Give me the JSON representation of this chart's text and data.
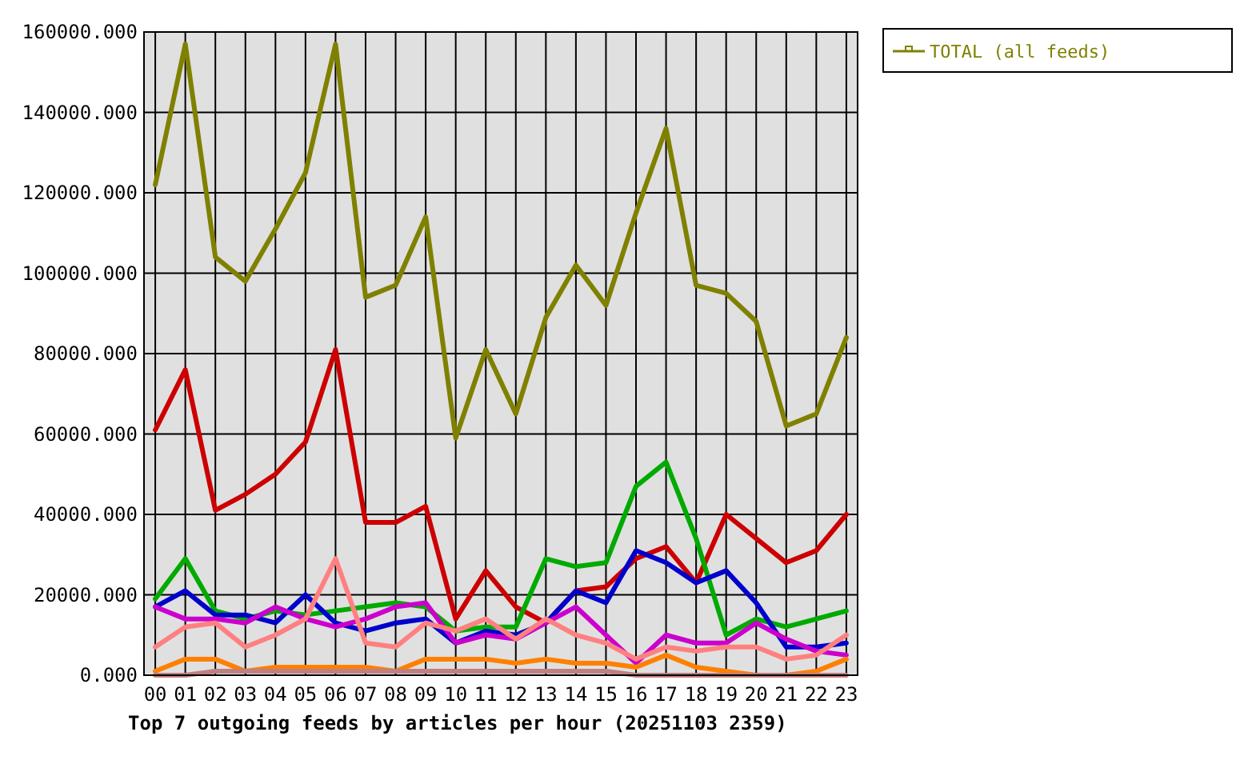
{
  "chart_data": {
    "type": "line",
    "title": "Top 7 outgoing feeds by articles per hour (20251103 2359)",
    "categories": [
      "00",
      "01",
      "02",
      "03",
      "04",
      "05",
      "06",
      "07",
      "08",
      "09",
      "10",
      "11",
      "12",
      "13",
      "14",
      "15",
      "16",
      "17",
      "18",
      "19",
      "20",
      "21",
      "22",
      "23"
    ],
    "series": [
      {
        "color": "#cc0000",
        "values": [
          61000,
          76000,
          41000,
          45000,
          50000,
          58000,
          81000,
          38000,
          38000,
          42000,
          14000,
          26000,
          17000,
          13000,
          21000,
          22000,
          29000,
          32000,
          23000,
          40000,
          34000,
          28000,
          31000,
          40000
        ]
      },
      {
        "color": "#00aa00",
        "values": [
          19000,
          29000,
          16000,
          14000,
          16000,
          15000,
          16000,
          17000,
          18000,
          17000,
          11000,
          12000,
          12000,
          29000,
          27000,
          28000,
          47000,
          53000,
          34000,
          10000,
          14000,
          12000,
          14000,
          16000
        ]
      },
      {
        "color": "#0000cc",
        "values": [
          17000,
          21000,
          15000,
          15000,
          13000,
          20000,
          13000,
          11000,
          13000,
          14000,
          8000,
          11000,
          10000,
          13000,
          21000,
          18000,
          31000,
          28000,
          23000,
          26000,
          18000,
          7000,
          7000,
          8000
        ]
      },
      {
        "color": "#cc00cc",
        "values": [
          17000,
          14000,
          14000,
          13000,
          17000,
          14000,
          12000,
          14000,
          17000,
          18000,
          8000,
          10000,
          9000,
          13000,
          17000,
          10000,
          3000,
          10000,
          8000,
          8000,
          13000,
          9000,
          6000,
          5000
        ]
      },
      {
        "color": "#ff8080",
        "values": [
          7000,
          12000,
          13000,
          7000,
          10000,
          14000,
          29000,
          8000,
          7000,
          13000,
          11000,
          14000,
          9000,
          14000,
          10000,
          8000,
          4000,
          7000,
          6000,
          7000,
          7000,
          4000,
          5000,
          10000
        ]
      },
      {
        "color": "#ff8000",
        "values": [
          1000,
          4000,
          4000,
          1000,
          2000,
          2000,
          2000,
          2000,
          1000,
          4000,
          4000,
          4000,
          3000,
          4000,
          3000,
          3000,
          2000,
          5000,
          2000,
          1000,
          0,
          0,
          1000,
          4000
        ]
      },
      {
        "color": "#c08080",
        "values": [
          0,
          0,
          1000,
          1000,
          1000,
          1000,
          1000,
          1000,
          1000,
          1000,
          1000,
          1000,
          1000,
          1000,
          1000,
          1000,
          0,
          0,
          0,
          0,
          0,
          0,
          0,
          0
        ]
      },
      {
        "name": "TOTAL (all feeds)",
        "color": "#808000",
        "values": [
          122000,
          157000,
          104000,
          98000,
          111000,
          125000,
          157000,
          94000,
          97000,
          114000,
          59000,
          81000,
          65000,
          89000,
          102000,
          92000,
          115000,
          136000,
          97000,
          95000,
          88000,
          62000,
          65000,
          84000
        ]
      }
    ],
    "ylim": [
      0,
      160000
    ],
    "yticks": [
      {
        "value": 0,
        "label": "0.000"
      },
      {
        "value": 20000,
        "label": "20000.000"
      },
      {
        "value": 40000,
        "label": "40000.000"
      },
      {
        "value": 60000,
        "label": "60000.000"
      },
      {
        "value": 80000,
        "label": "80000.000"
      },
      {
        "value": 100000,
        "label": "100000.000"
      },
      {
        "value": 120000,
        "label": "120000.000"
      },
      {
        "value": 140000,
        "label": "140000.000"
      },
      {
        "value": 160000,
        "label": "160000.000"
      }
    ],
    "grid": true,
    "legend": "right",
    "marker": "none",
    "line_style": "solid"
  }
}
